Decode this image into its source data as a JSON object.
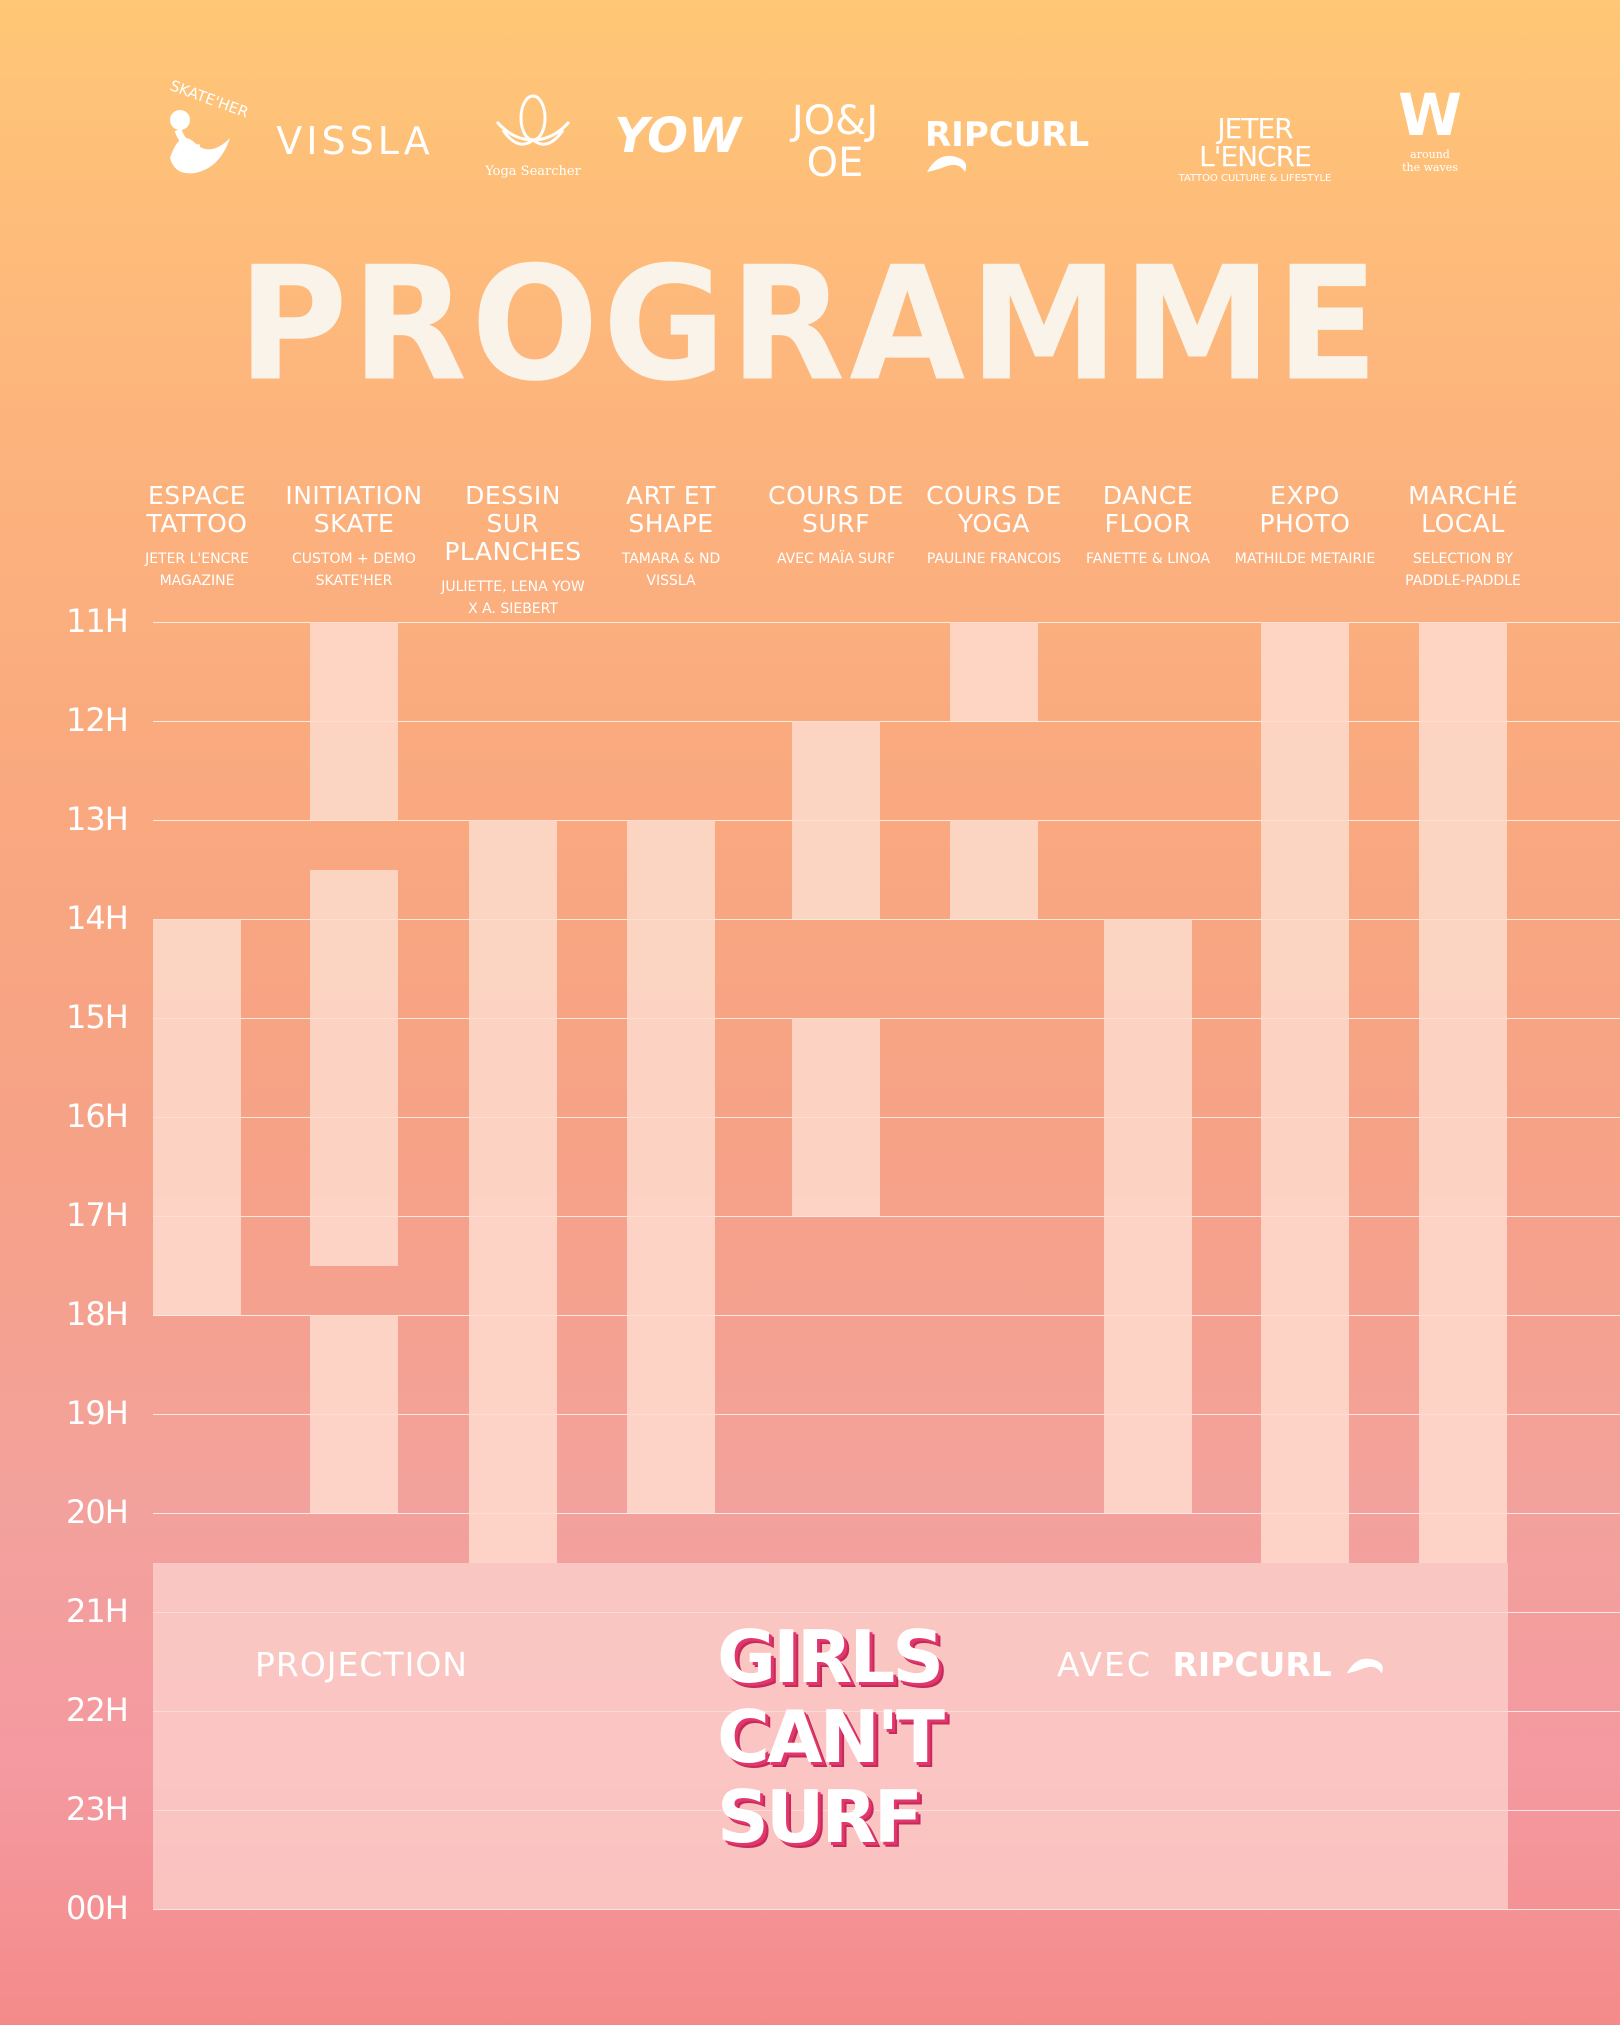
{
  "sponsors": [
    {
      "name": "SKATE'HER"
    },
    {
      "name": "VISSLA"
    },
    {
      "name": "Yoga Searcher"
    },
    {
      "name": "YOW"
    },
    {
      "name": "JO&JOE"
    },
    {
      "name": "RIPCURL"
    },
    {
      "name": "JETER L'ENCRE",
      "tagline": "TATTOO CULTURE & LIFESTYLE"
    },
    {
      "name": "W",
      "tagline": "around the waves"
    }
  ],
  "title": "PROGRAMME",
  "columns": [
    {
      "title": "ESPACE TATTOO",
      "sub": "JETER L'ENCRE MAGAZINE"
    },
    {
      "title": "INITIATION SKATE",
      "sub": "CUSTOM + DEMO SKATE'HER"
    },
    {
      "title": "DESSIN SUR PLANCHES",
      "sub": "JULIETTE, LENA YOW X A. SIEBERT"
    },
    {
      "title": "ART ET SHAPE",
      "sub": "TAMARA & ND VISSLA"
    },
    {
      "title": "COURS DE SURF",
      "sub": "AVEC MAÏA SURF"
    },
    {
      "title": "COURS DE YOGA",
      "sub": "PAULINE FRANCOIS"
    },
    {
      "title": "DANCE FLOOR",
      "sub": "FANETTE & LINOA"
    },
    {
      "title": "EXPO PHOTO",
      "sub": "MATHILDE METAIRIE"
    },
    {
      "title": "MARCHÉ LOCAL",
      "sub": "SELECTION BY PADDLE-PADDLE"
    }
  ],
  "hours": [
    "11H",
    "12H",
    "13H",
    "14H",
    "15H",
    "16H",
    "17H",
    "18H",
    "19H",
    "20H",
    "21H",
    "22H",
    "23H",
    "00H"
  ],
  "schedule": [
    {
      "column": 0,
      "start": 14,
      "end": 18
    },
    {
      "column": 1,
      "start": 11,
      "end": 13
    },
    {
      "column": 1,
      "start": 13.5,
      "end": 17.5
    },
    {
      "column": 1,
      "start": 18,
      "end": 20
    },
    {
      "column": 2,
      "start": 13,
      "end": 20.5
    },
    {
      "column": 3,
      "start": 13,
      "end": 20
    },
    {
      "column": 4,
      "start": 12,
      "end": 14
    },
    {
      "column": 4,
      "start": 15,
      "end": 17
    },
    {
      "column": 5,
      "start": 11,
      "end": 12
    },
    {
      "column": 5,
      "start": 13,
      "end": 14
    },
    {
      "column": 6,
      "start": 14,
      "end": 20
    },
    {
      "column": 7,
      "start": 11,
      "end": 20.5
    },
    {
      "column": 8,
      "start": 11,
      "end": 20.5
    }
  ],
  "evening": {
    "start": 20.5,
    "end": 24,
    "label": "PROJECTION",
    "film_lines": [
      "GIRLS",
      "CAN'T",
      "SURF"
    ],
    "with_label": "AVEC",
    "with_brand": "RIPCURL"
  }
}
